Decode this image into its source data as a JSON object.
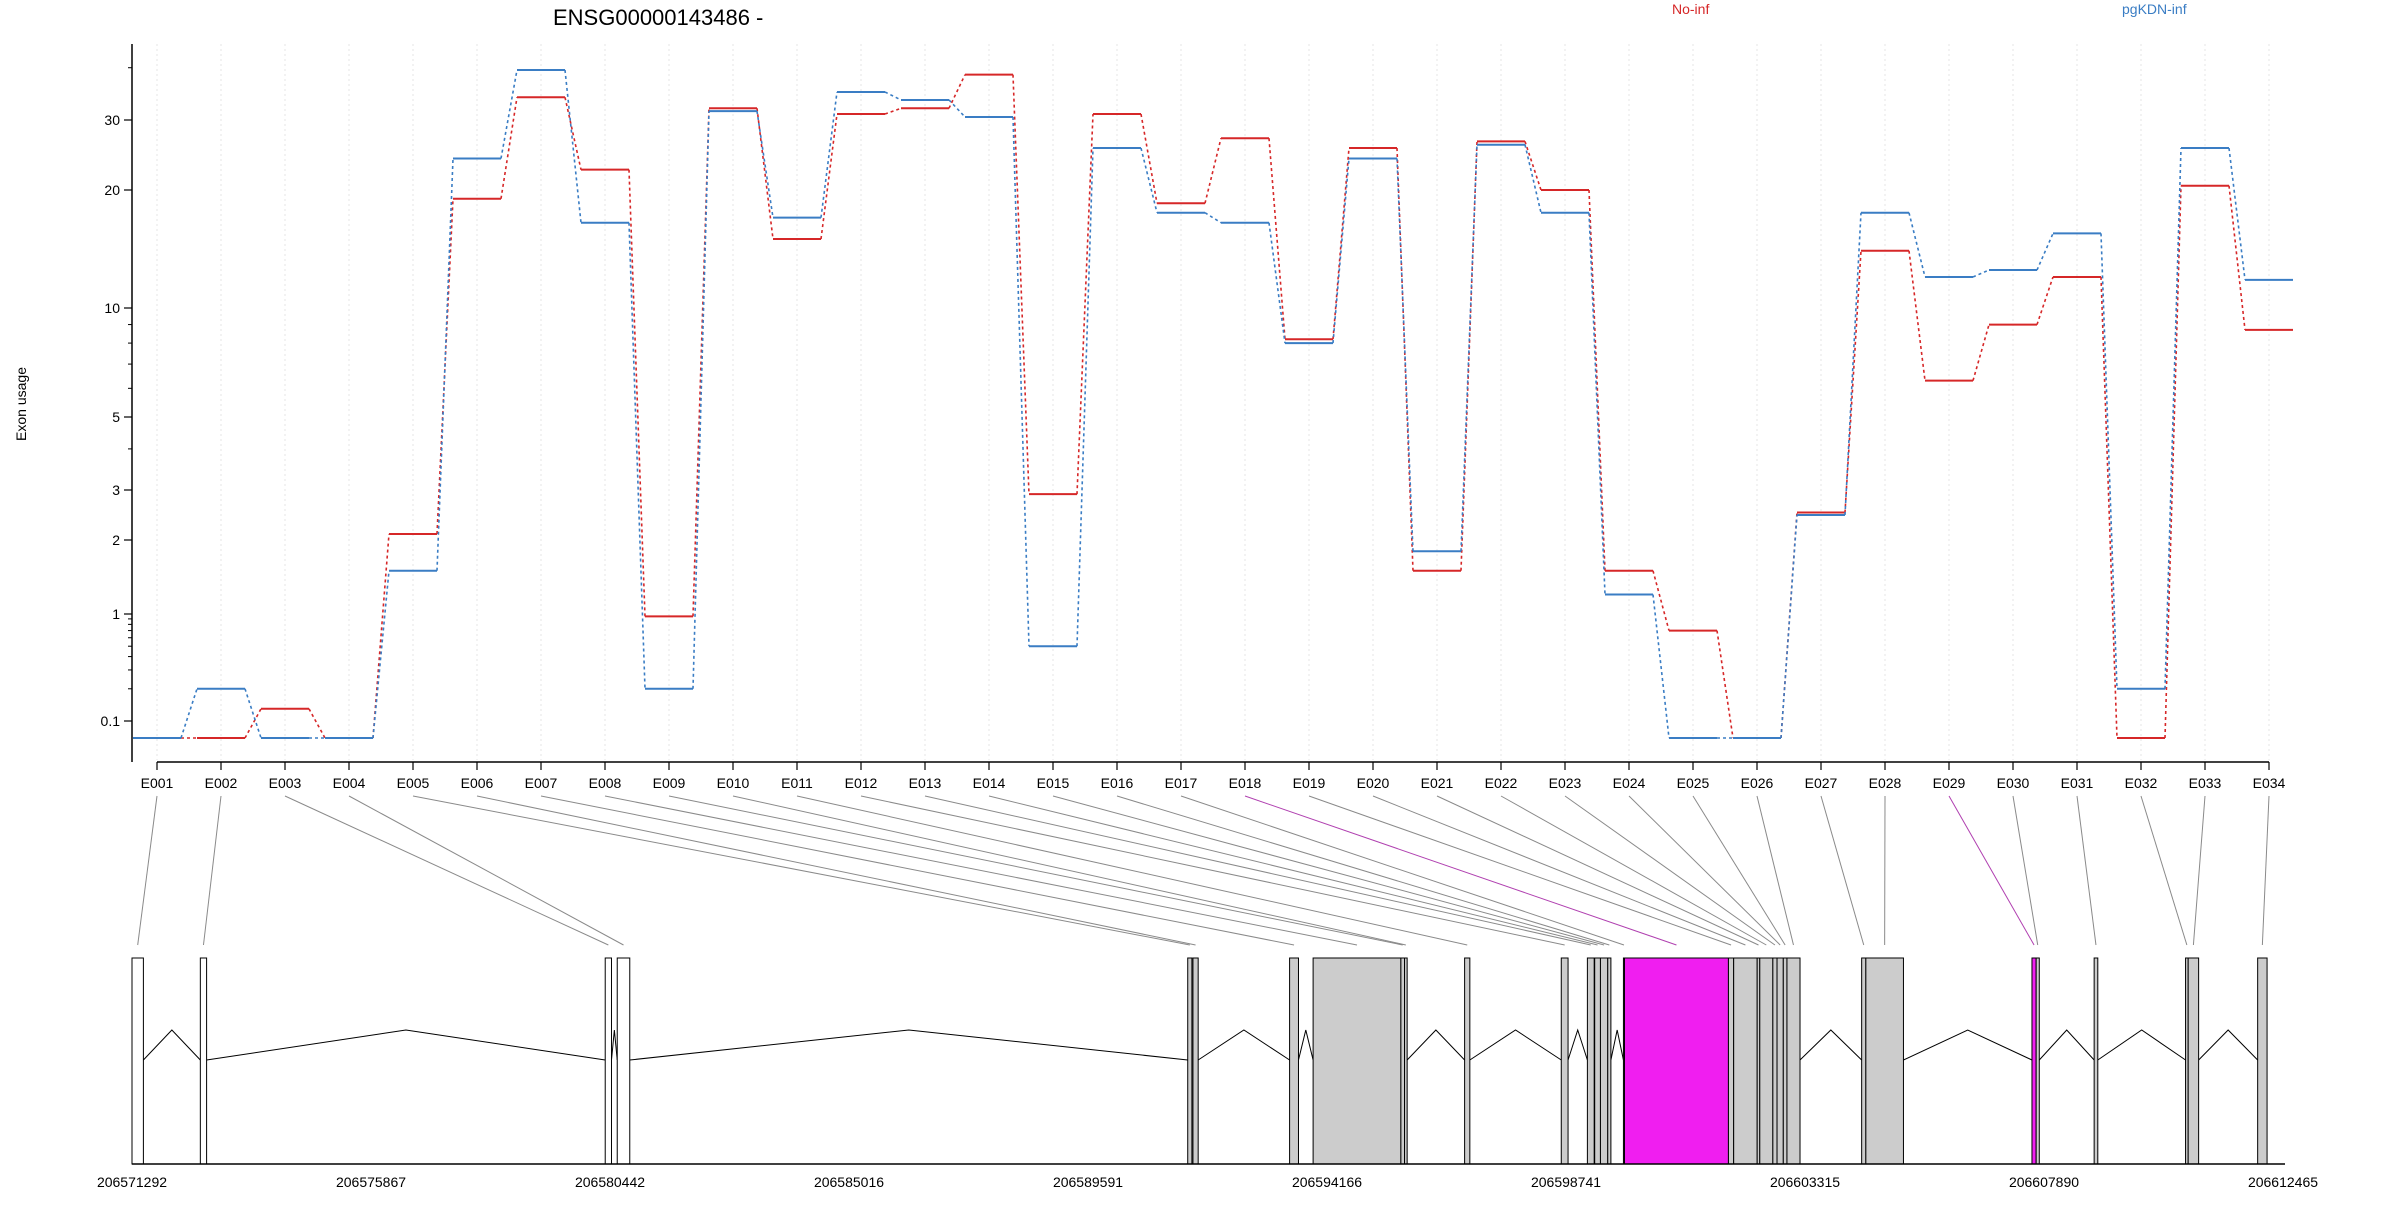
{
  "chart_data": {
    "type": "line",
    "title": "ENSG00000143486 -",
    "ylabel": "Exon usage",
    "xlabel": "",
    "y_scale": "log",
    "y_ticks": [
      0.1,
      1,
      2,
      3,
      5,
      10,
      20,
      30
    ],
    "y_tick_labels": [
      "0.1",
      "1",
      "2",
      "3",
      "5",
      "10",
      "20",
      "30"
    ],
    "categories": [
      "E001",
      "E002",
      "E003",
      "E004",
      "E005",
      "E006",
      "E007",
      "E008",
      "E009",
      "E010",
      "E011",
      "E012",
      "E013",
      "E014",
      "E015",
      "E016",
      "E017",
      "E018",
      "E019",
      "E020",
      "E021",
      "E022",
      "E023",
      "E024",
      "E025",
      "E026",
      "E027",
      "E028",
      "E029",
      "E030",
      "E031",
      "E032",
      "E033",
      "E034"
    ],
    "series": [
      {
        "name": "No-inf",
        "color": "#d62728",
        "values": [
          0.05,
          0.05,
          0.13,
          0.05,
          2.1,
          19.0,
          34.0,
          22.5,
          0.95,
          32.0,
          15.0,
          31.0,
          32.0,
          38.5,
          2.9,
          31.0,
          18.5,
          27.0,
          8.2,
          25.5,
          1.5,
          26.5,
          20.0,
          1.5,
          0.7,
          0.05,
          2.5,
          14.0,
          6.3,
          9.0,
          12.0,
          0.05,
          20.5,
          8.7
        ]
      },
      {
        "name": "pgKDN-inf",
        "color": "#3a7dc4",
        "values": [
          0.05,
          0.2,
          0.05,
          0.05,
          1.5,
          24.0,
          39.5,
          16.5,
          0.2,
          31.5,
          17.0,
          35.0,
          33.5,
          30.5,
          0.5,
          25.5,
          17.5,
          16.5,
          8.0,
          24.0,
          1.8,
          26.0,
          17.5,
          1.2,
          0.05,
          0.05,
          2.45,
          17.5,
          12.0,
          12.5,
          15.5,
          0.2,
          25.5,
          11.8
        ]
      }
    ],
    "highlighted_exons": [
      "E018",
      "E029"
    ],
    "gene_model": {
      "coordinate_ticks": [
        "206571292",
        "206575867",
        "206580442",
        "206585016",
        "206589591",
        "206594166",
        "206598741",
        "206603315",
        "206607890",
        "206612465"
      ],
      "coordinate_values": [
        206571292,
        206575867,
        206580442,
        206585016,
        206589591,
        206594166,
        206598741,
        206603315,
        206607890,
        206612465
      ],
      "exons": [
        {
          "id": "E001",
          "start": 206571292,
          "end": 206571510,
          "fill": "#ffffff"
        },
        {
          "id": "E002",
          "start": 206572600,
          "end": 206572720,
          "fill": "#ffffff"
        },
        {
          "id": "E003",
          "start": 206580350,
          "end": 206580470,
          "fill": "#ffffff"
        },
        {
          "id": "E004",
          "start": 206580580,
          "end": 206580820,
          "fill": "#ffffff"
        },
        {
          "id": "E005",
          "start": 206591500,
          "end": 206591580,
          "fill": "#cccccc"
        },
        {
          "id": "E006",
          "start": 206591600,
          "end": 206591700,
          "fill": "#cccccc"
        },
        {
          "id": "E007",
          "start": 206593450,
          "end": 206593620,
          "fill": "#cccccc"
        },
        {
          "id": "E008",
          "start": 206593900,
          "end": 206595580,
          "fill": "#cccccc"
        },
        {
          "id": "E009",
          "start": 206595580,
          "end": 206595650,
          "fill": "#cccccc"
        },
        {
          "id": "E010",
          "start": 206595650,
          "end": 206595700,
          "fill": "#cccccc"
        },
        {
          "id": "E011",
          "start": 206596800,
          "end": 206596900,
          "fill": "#cccccc"
        },
        {
          "id": "E012",
          "start": 206598650,
          "end": 206598780,
          "fill": "#cccccc"
        },
        {
          "id": "E013",
          "start": 206599150,
          "end": 206599280,
          "fill": "#cccccc"
        },
        {
          "id": "E014",
          "start": 206599290,
          "end": 206599400,
          "fill": "#cccccc"
        },
        {
          "id": "E015",
          "start": 206599400,
          "end": 206599540,
          "fill": "#cccccc"
        },
        {
          "id": "E016",
          "start": 206599540,
          "end": 206599600,
          "fill": "#cccccc"
        },
        {
          "id": "E017",
          "start": 206599840,
          "end": 206599860,
          "fill": "#cccccc"
        },
        {
          "id": "E018",
          "start": 206599860,
          "end": 206601850,
          "fill": "#f01ef0"
        },
        {
          "id": "E019",
          "start": 206601850,
          "end": 206601950,
          "fill": "#cccccc"
        },
        {
          "id": "E020",
          "start": 206601950,
          "end": 206602400,
          "fill": "#cccccc"
        },
        {
          "id": "E021",
          "start": 206602400,
          "end": 206602450,
          "fill": "#cccccc"
        },
        {
          "id": "E022",
          "start": 206602450,
          "end": 206602700,
          "fill": "#cccccc"
        },
        {
          "id": "E023",
          "start": 206602700,
          "end": 206602780,
          "fill": "#cccccc"
        },
        {
          "id": "E024",
          "start": 206602780,
          "end": 206602900,
          "fill": "#cccccc"
        },
        {
          "id": "E025",
          "start": 206602900,
          "end": 206602970,
          "fill": "#cccccc"
        },
        {
          "id": "E026",
          "start": 206602970,
          "end": 206603220,
          "fill": "#cccccc"
        },
        {
          "id": "E027",
          "start": 206604400,
          "end": 206604480,
          "fill": "#cccccc"
        },
        {
          "id": "E028",
          "start": 206604480,
          "end": 206605200,
          "fill": "#cccccc"
        },
        {
          "id": "E029",
          "start": 206607660,
          "end": 206607740,
          "fill": "#f01ef0"
        },
        {
          "id": "E030",
          "start": 206607740,
          "end": 206607800,
          "fill": "#cccccc"
        },
        {
          "id": "E031",
          "start": 206608850,
          "end": 206608920,
          "fill": "#cccccc"
        },
        {
          "id": "E032",
          "start": 206610600,
          "end": 206610650,
          "fill": "#cccccc"
        },
        {
          "id": "E033",
          "start": 206610650,
          "end": 206610850,
          "fill": "#cccccc"
        },
        {
          "id": "E034",
          "start": 206611980,
          "end": 206612160,
          "fill": "#cccccc"
        }
      ]
    }
  }
}
